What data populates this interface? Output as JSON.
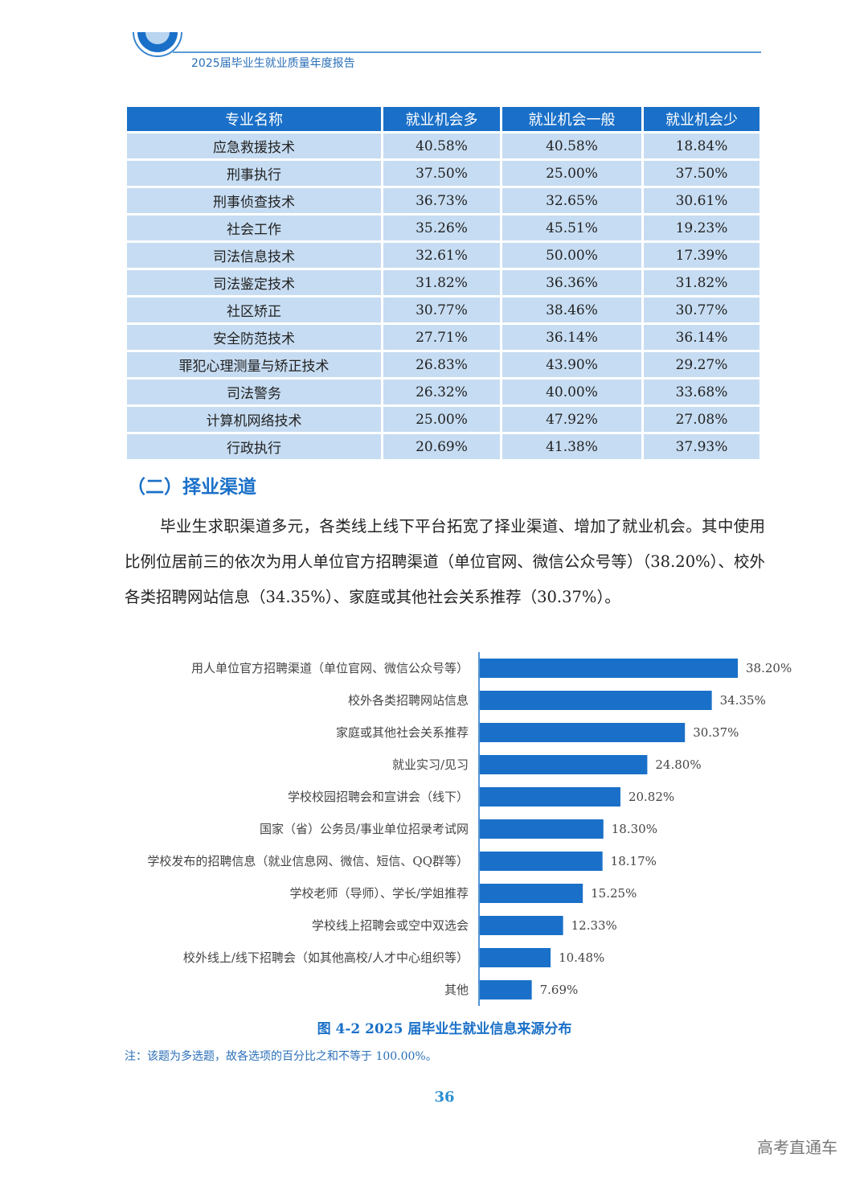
{
  "header": {
    "title": "2025届毕业生就业质量年度报告"
  },
  "table": {
    "columns": [
      "专业名称",
      "就业机会多",
      "就业机会一般",
      "就业机会少"
    ],
    "rows": [
      [
        "应急救援技术",
        "40.58%",
        "40.58%",
        "18.84%"
      ],
      [
        "刑事执行",
        "37.50%",
        "25.00%",
        "37.50%"
      ],
      [
        "刑事侦查技术",
        "36.73%",
        "32.65%",
        "30.61%"
      ],
      [
        "社会工作",
        "35.26%",
        "45.51%",
        "19.23%"
      ],
      [
        "司法信息技术",
        "32.61%",
        "50.00%",
        "17.39%"
      ],
      [
        "司法鉴定技术",
        "31.82%",
        "36.36%",
        "31.82%"
      ],
      [
        "社区矫正",
        "30.77%",
        "38.46%",
        "30.77%"
      ],
      [
        "安全防范技术",
        "27.71%",
        "36.14%",
        "36.14%"
      ],
      [
        "罪犯心理测量与矫正技术",
        "26.83%",
        "43.90%",
        "29.27%"
      ],
      [
        "司法警务",
        "26.32%",
        "40.00%",
        "33.68%"
      ],
      [
        "计算机网络技术",
        "25.00%",
        "47.92%",
        "27.08%"
      ],
      [
        "行政执行",
        "20.69%",
        "41.38%",
        "37.93%"
      ]
    ]
  },
  "section": {
    "heading": "（二）择业渠道",
    "paragraph": "毕业生求职渠道多元，各类线上线下平台拓宽了择业渠道、增加了就业机会。其中使用比例位居前三的依次为用人单位官方招聘渠道（单位官网、微信公众号等）（38.20%）、校外各类招聘网站信息（34.35%）、家庭或其他社会关系推荐（30.37%）。"
  },
  "chart_data": {
    "type": "bar",
    "orientation": "horizontal",
    "categories": [
      "用人单位官方招聘渠道（单位官网、微信公众号等）",
      "校外各类招聘网站信息",
      "家庭或其他社会关系推荐",
      "就业实习/见习",
      "学校校园招聘会和宣讲会（线下）",
      "国家（省）公务员/事业单位招录考试网",
      "学校发布的招聘信息（就业信息网、微信、短信、QQ群等）",
      "学校老师（导师）、学长/学姐推荐",
      "学校线上招聘会或空中双选会",
      "校外线上/线下招聘会（如其他高校/人才中心组织等）",
      "其他"
    ],
    "values": [
      38.2,
      34.35,
      30.37,
      24.8,
      20.82,
      18.3,
      18.17,
      15.25,
      12.33,
      10.48,
      7.69
    ],
    "data_labels": [
      "38.20%",
      "34.35%",
      "30.37%",
      "24.80%",
      "20.82%",
      "18.30%",
      "18.17%",
      "15.25%",
      "12.33%",
      "10.48%",
      "7.69%"
    ],
    "bar_color": "#1a70c8",
    "grid": false,
    "title": "图 4-2  2025 届毕业生就业信息来源分布"
  },
  "note": "注：该题为多选题，故各选项的百分比之和不等于 100.00%。",
  "page_number": "36",
  "watermark": "高考直通车"
}
